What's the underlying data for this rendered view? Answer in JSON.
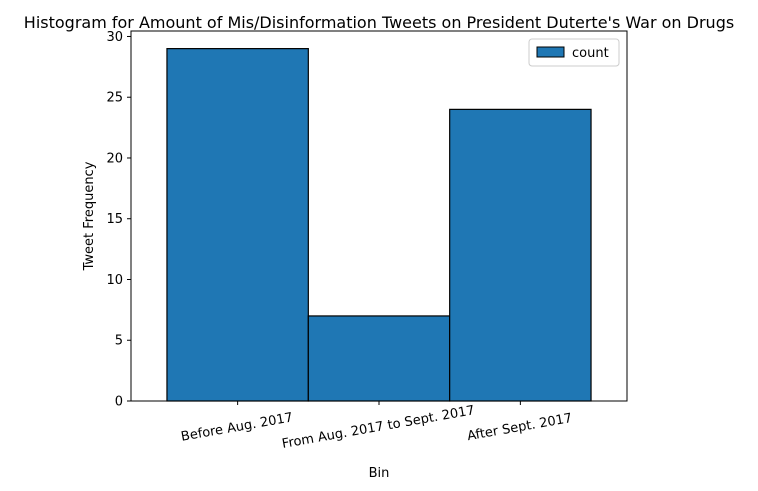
{
  "chart_data": {
    "type": "bar",
    "title": "Histogram for Amount of Mis/Disinformation Tweets on President Duterte's War on Drugs",
    "xlabel": "Bin",
    "ylabel": "Tweet Frequency",
    "categories": [
      "Before Aug. 2017",
      "From Aug. 2017 to Sept. 2017",
      "After Sept. 2017"
    ],
    "series": [
      {
        "name": "count",
        "values": [
          29,
          7,
          24
        ],
        "color": "#1f77b4"
      }
    ],
    "ylim": [
      0,
      30.45
    ],
    "yticks": [
      0,
      5,
      10,
      15,
      20,
      25,
      30
    ],
    "grid": false,
    "legend": "top-right",
    "edge_color": "#000000"
  }
}
